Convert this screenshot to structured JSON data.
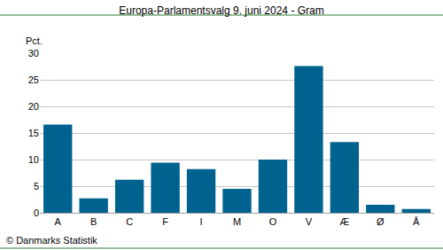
{
  "chart_data": {
    "type": "bar",
    "title": "Europa-Parlamentsvalg 9. juni 2024 - Gram",
    "ylabel": "Pct.",
    "annotations": [
      "© Danmarks Statistik"
    ],
    "categories": [
      "A",
      "B",
      "C",
      "F",
      "I",
      "M",
      "O",
      "V",
      "Æ",
      "Ø",
      "Å"
    ],
    "values": [
      16.6,
      2.7,
      6.2,
      9.4,
      8.2,
      4.5,
      10.0,
      27.6,
      13.3,
      1.5,
      0.7
    ],
    "color": "#00628f",
    "ylim": [
      0,
      30
    ],
    "yticks": [
      0,
      5,
      10,
      15,
      20,
      25,
      30
    ],
    "grid": true
  }
}
